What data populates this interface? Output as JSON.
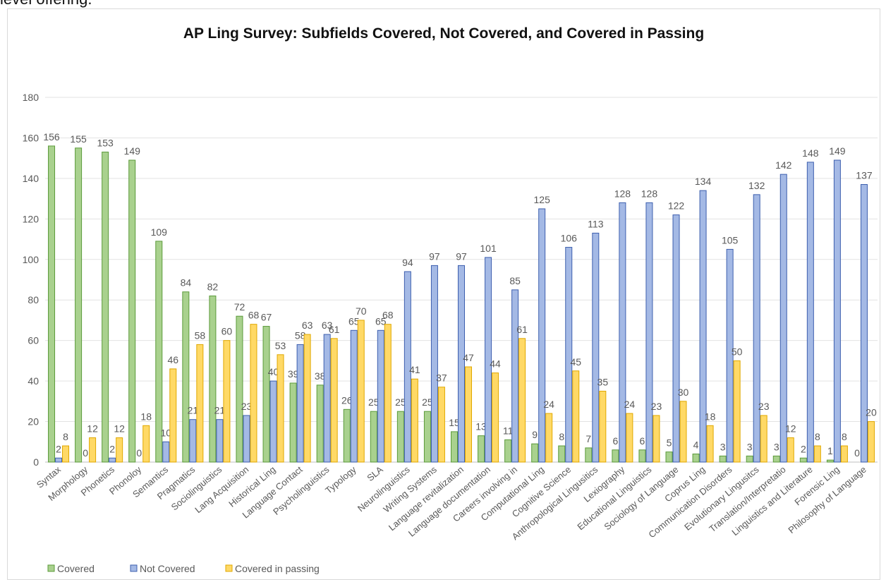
{
  "page": {
    "top_text": "level offering."
  },
  "chart_data": {
    "type": "bar",
    "title": "AP Ling Survey: Subfields Covered, Not Covered, and Covered in Passing",
    "xlabel": "",
    "ylabel": "",
    "ylim": [
      0,
      180
    ],
    "yticks": [
      0,
      20,
      40,
      60,
      80,
      100,
      120,
      140,
      160,
      180
    ],
    "grid": true,
    "legend_position": "bottom-left",
    "categories": [
      "Syntax",
      "Morphology",
      "Phonetics",
      "Phonoloy",
      "Semantics",
      "Pragmatics",
      "Sociolinguistics",
      "Lang Acquisition",
      "Historical Ling",
      "Language Contact",
      "Psycholinguistics",
      "Typology",
      "SLA",
      "Neurolinguistics",
      "Writing Systems",
      "Language revitalization",
      "Language documentation",
      "Careers involving in",
      "Computational Ling",
      "Cognitive Science",
      "Anthropological Lingusitics",
      "Lexiography",
      "Educational Linguistics",
      "Sociology of Language",
      "Coprus Ling",
      "Communication Disorders",
      "Evolutionary Lingusitcs",
      "Translation/Interpretatio",
      "Linguistics and Literature",
      "Forensic Ling",
      "Philosophy of Language"
    ],
    "series": [
      {
        "name": "Covered",
        "color": "#a9d18e",
        "stroke": "#5b9a3a",
        "values": [
          156,
          155,
          153,
          149,
          109,
          84,
          82,
          72,
          67,
          39,
          38,
          26,
          25,
          25,
          25,
          15,
          13,
          11,
          9,
          8,
          7,
          6,
          6,
          5,
          4,
          3,
          3,
          3,
          2,
          1,
          0
        ]
      },
      {
        "name": "Not Covered",
        "color": "#a4b9e5",
        "stroke": "#3d5fae",
        "values": [
          2,
          0,
          2,
          0,
          10,
          21,
          21,
          23,
          40,
          58,
          63,
          65,
          65,
          94,
          97,
          97,
          101,
          85,
          125,
          106,
          113,
          128,
          128,
          122,
          134,
          105,
          132,
          142,
          148,
          149,
          137
        ]
      },
      {
        "name": "Covered in passing",
        "color": "#ffd966",
        "stroke": "#e0a800",
        "values": [
          8,
          12,
          12,
          18,
          46,
          58,
          60,
          68,
          53,
          63,
          61,
          70,
          68,
          41,
          37,
          47,
          44,
          61,
          24,
          45,
          35,
          24,
          23,
          30,
          18,
          50,
          23,
          12,
          8,
          8,
          20
        ]
      }
    ]
  }
}
